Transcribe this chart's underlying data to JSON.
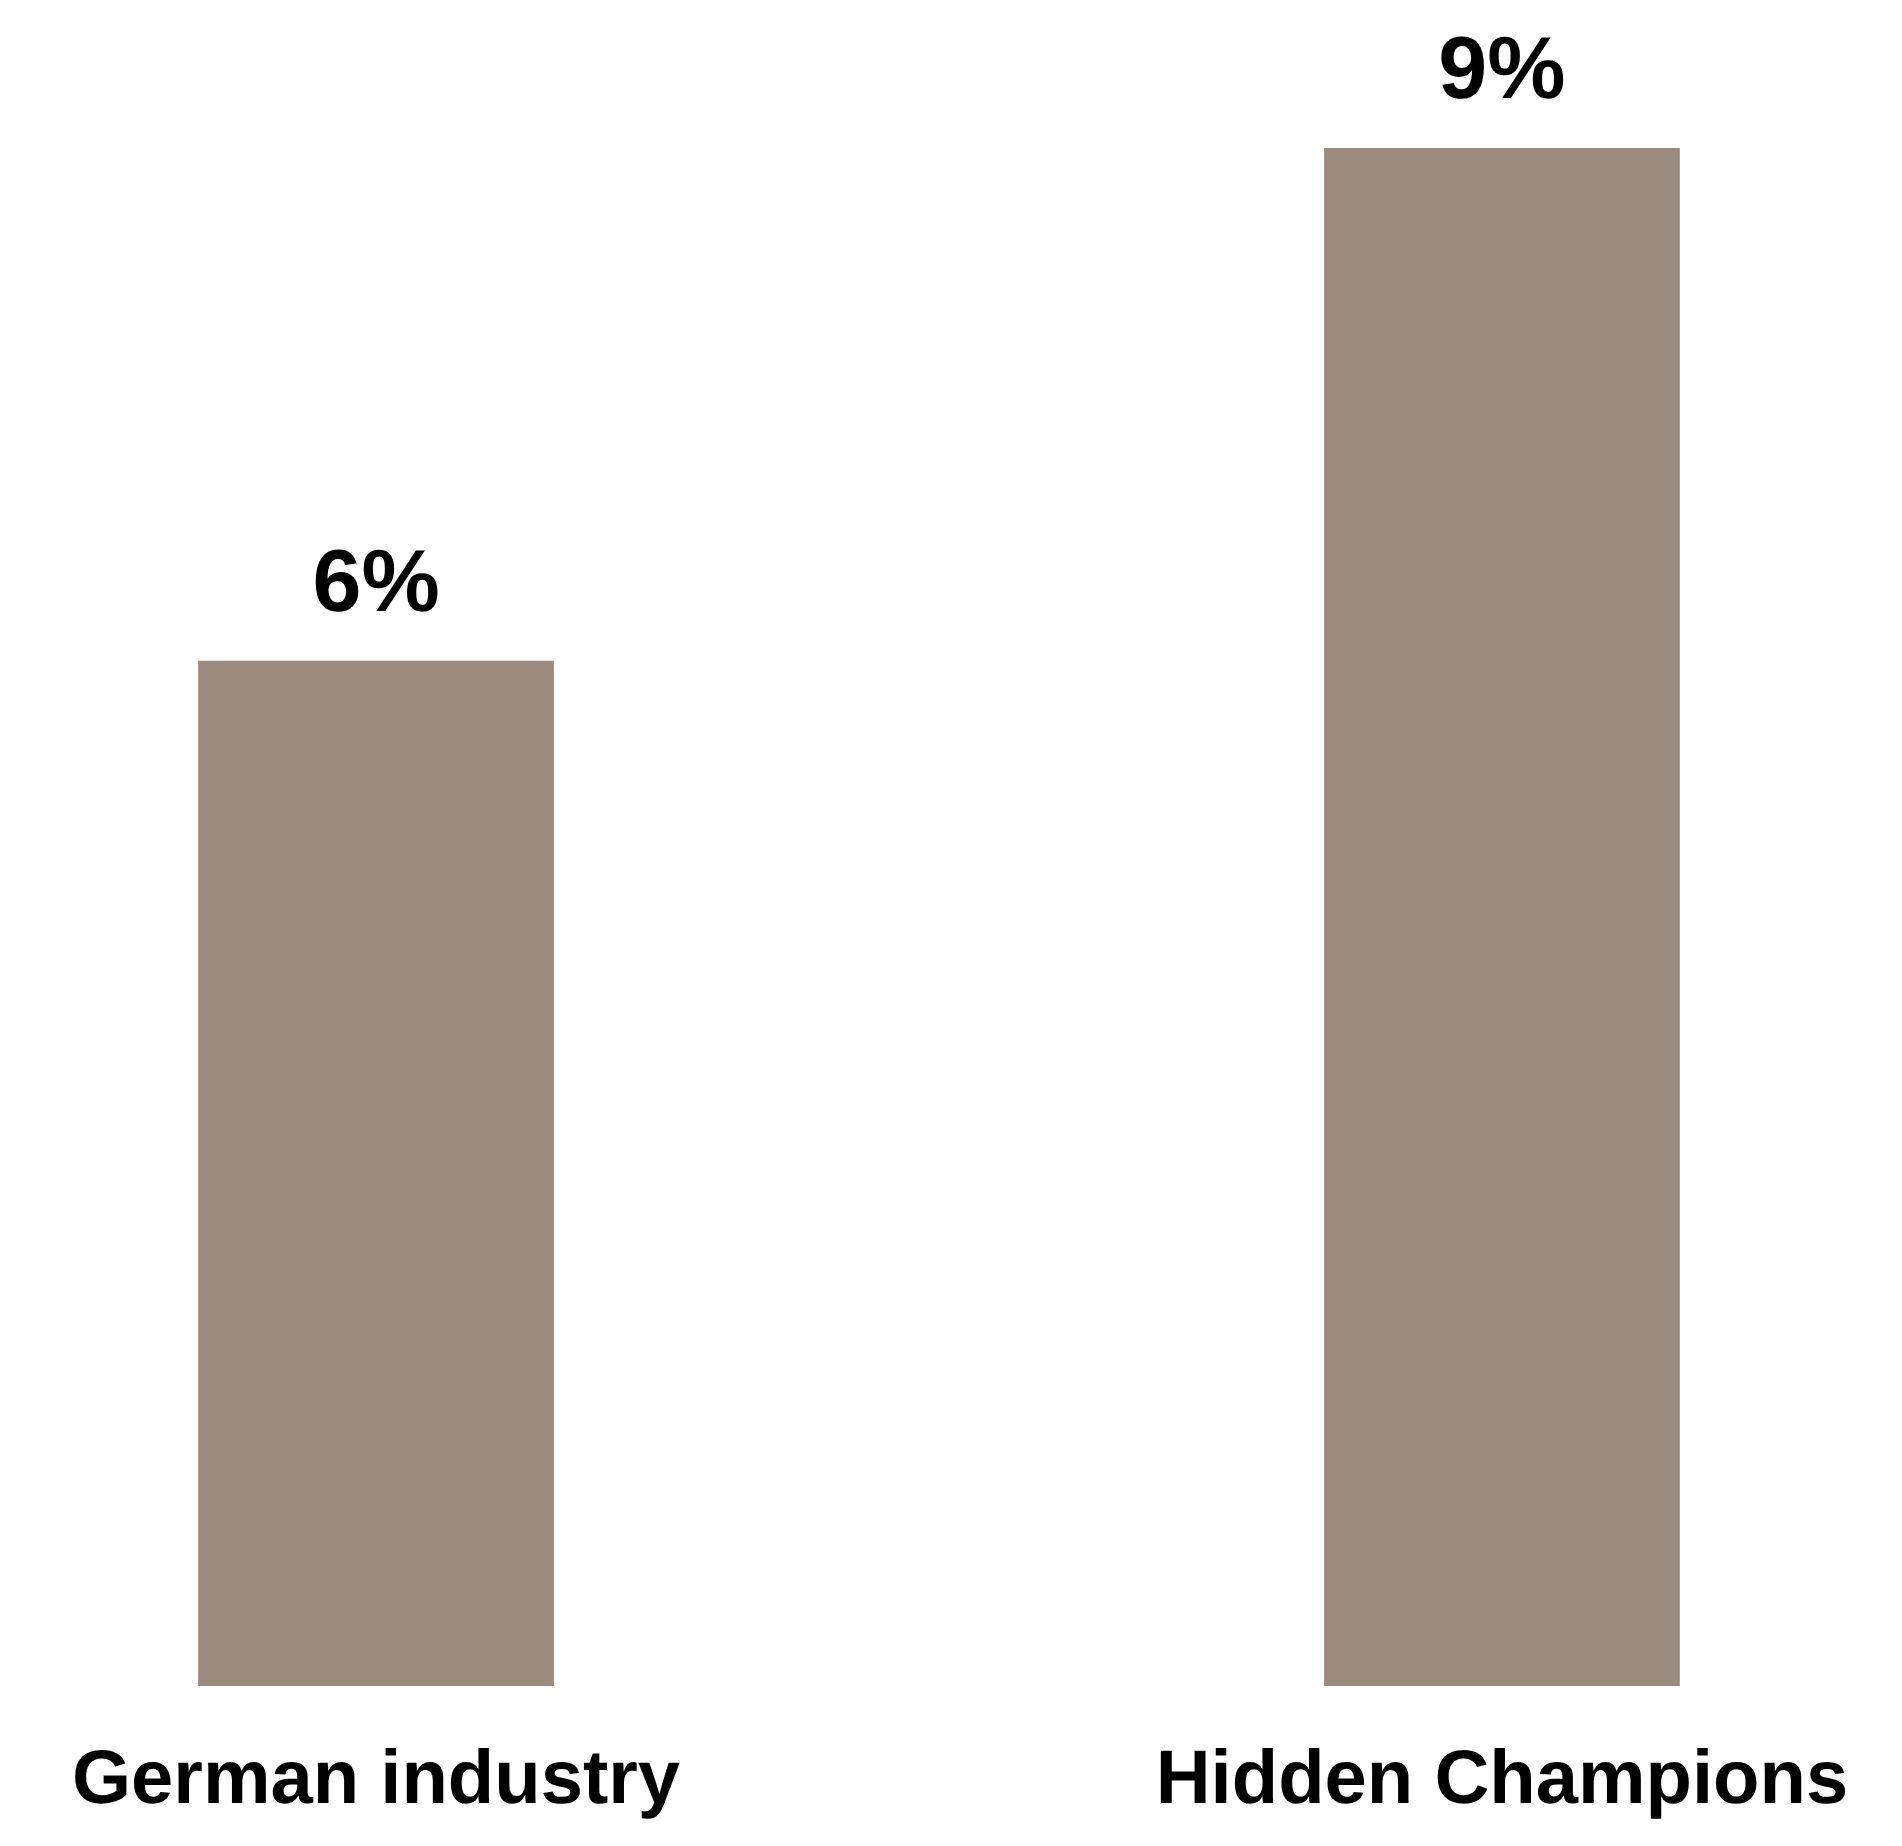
{
  "chart_data": {
    "type": "bar",
    "categories": [
      "German industry",
      "Hidden Champions"
    ],
    "values": [
      6,
      9
    ],
    "value_labels": [
      "6%",
      "9%"
    ],
    "color": "#9c8c7f"
  }
}
